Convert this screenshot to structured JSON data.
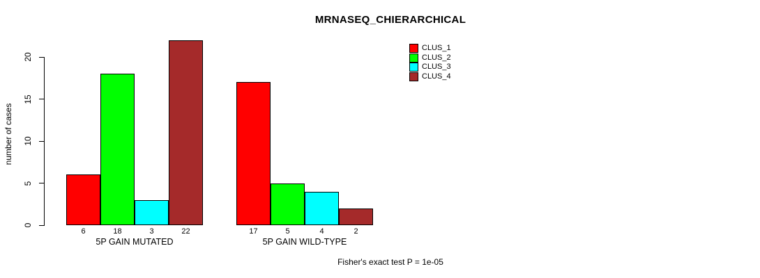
{
  "chart_data": {
    "type": "bar",
    "title": "MRNASEQ_CHIERARCHICAL",
    "xlabel": "",
    "ylabel": "number of cases",
    "categories": [
      "5P GAIN MUTATED",
      "5P GAIN WILD-TYPE"
    ],
    "series": [
      {
        "name": "CLUS_1",
        "color": "#FF0000",
        "values": [
          6,
          17
        ]
      },
      {
        "name": "CLUS_2",
        "color": "#00FF00",
        "values": [
          18,
          5
        ]
      },
      {
        "name": "CLUS_3",
        "color": "#00FFFF",
        "values": [
          3,
          4
        ]
      },
      {
        "name": "CLUS_4",
        "color": "#A52A2A",
        "values": [
          22,
          2
        ]
      }
    ],
    "yticks": [
      0,
      5,
      10,
      15,
      20
    ],
    "ylim": [
      0,
      22
    ],
    "grid": false,
    "bar_value_labels_shown": true,
    "legend_position": "top-right",
    "legend_entries": [
      "CLUS_1",
      "CLUS_2",
      "CLUS_3",
      "CLUS_4"
    ],
    "annotation": "Fisher's exact test P = 1e-05"
  }
}
